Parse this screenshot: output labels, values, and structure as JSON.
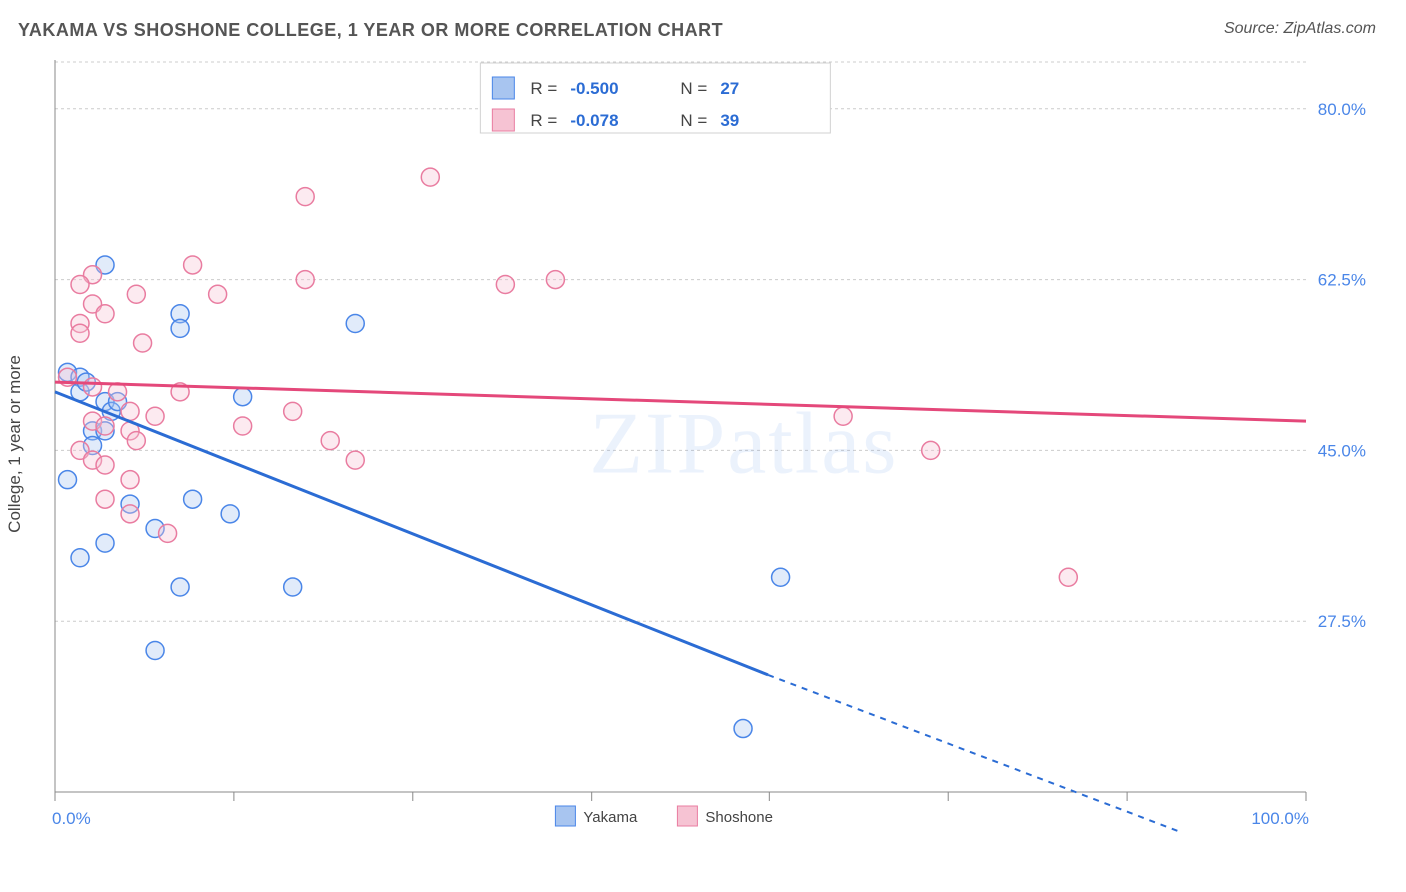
{
  "title": "YAKAMA VS SHOSHONE COLLEGE, 1 YEAR OR MORE CORRELATION CHART",
  "source": "Source: ZipAtlas.com",
  "watermark": "ZIPatlas",
  "chart": {
    "type": "scatter",
    "ylabel": "College, 1 year or more",
    "xlim": [
      0,
      100
    ],
    "ylim": [
      10,
      85
    ],
    "xtick_positions": [
      0,
      14.3,
      28.6,
      42.9,
      57.1,
      71.4,
      85.7,
      100
    ],
    "xtick_labels_shown": {
      "0": "0.0%",
      "100": "100.0%"
    },
    "ytick_positions": [
      27.5,
      45.0,
      62.5,
      80.0
    ],
    "ytick_labels": [
      "27.5%",
      "45.0%",
      "62.5%",
      "80.0%"
    ],
    "grid_color": "#cccccc",
    "background_color": "#ffffff",
    "axis_color": "#888888",
    "marker_radius": 9,
    "series": [
      {
        "name": "Yakama",
        "color_stroke": "#4a86e8",
        "color_fill": "#a8c5f0",
        "R": "-0.500",
        "N": "27",
        "trend": {
          "x1": 0,
          "y1": 51,
          "x2": 57,
          "y2": 22,
          "dash_x2": 100,
          "dash_y2": 1,
          "color": "#2b6cd4"
        },
        "points": [
          [
            4,
            64
          ],
          [
            10,
            59
          ],
          [
            10,
            57.5
          ],
          [
            1,
            53
          ],
          [
            2,
            52.5
          ],
          [
            2,
            51
          ],
          [
            4,
            50
          ],
          [
            4.5,
            49
          ],
          [
            3,
            47
          ],
          [
            4,
            47
          ],
          [
            3,
            45.5
          ],
          [
            15,
            50.5
          ],
          [
            24,
            58
          ],
          [
            1,
            42
          ],
          [
            6,
            39.5
          ],
          [
            11,
            40
          ],
          [
            14,
            38.5
          ],
          [
            8,
            37
          ],
          [
            4,
            35.5
          ],
          [
            2,
            34
          ],
          [
            10,
            31
          ],
          [
            19,
            31
          ],
          [
            8,
            24.5
          ],
          [
            58,
            32
          ],
          [
            55,
            16.5
          ],
          [
            2.5,
            52
          ],
          [
            5,
            50
          ]
        ]
      },
      {
        "name": "Shoshone",
        "color_stroke": "#e97ca0",
        "color_fill": "#f6c3d3",
        "R": "-0.078",
        "N": "39",
        "trend": {
          "x1": 0,
          "y1": 52,
          "x2": 100,
          "y2": 48,
          "color": "#e4487a"
        },
        "points": [
          [
            30,
            73
          ],
          [
            20,
            71
          ],
          [
            11,
            64
          ],
          [
            3,
            63
          ],
          [
            2,
            62
          ],
          [
            6.5,
            61
          ],
          [
            13,
            61
          ],
          [
            20,
            62.5
          ],
          [
            36,
            62
          ],
          [
            40,
            62.5
          ],
          [
            2,
            58
          ],
          [
            2,
            57
          ],
          [
            7,
            56
          ],
          [
            1,
            52.5
          ],
          [
            3,
            51.5
          ],
          [
            5,
            51
          ],
          [
            6,
            49
          ],
          [
            10,
            51
          ],
          [
            3,
            48
          ],
          [
            4,
            47.5
          ],
          [
            6,
            47
          ],
          [
            6.5,
            46
          ],
          [
            8,
            48.5
          ],
          [
            19,
            49
          ],
          [
            15,
            47.5
          ],
          [
            22,
            46
          ],
          [
            24,
            44
          ],
          [
            2,
            45
          ],
          [
            3,
            44
          ],
          [
            4,
            43.5
          ],
          [
            6,
            42
          ],
          [
            4,
            40
          ],
          [
            6,
            38.5
          ],
          [
            9,
            36.5
          ],
          [
            63,
            48.5
          ],
          [
            70,
            45
          ],
          [
            81,
            32
          ],
          [
            3,
            60
          ],
          [
            4,
            59
          ]
        ]
      }
    ],
    "legend_bottom": [
      {
        "label": "Yakama",
        "fill": "#a8c5f0",
        "stroke": "#4a86e8"
      },
      {
        "label": "Shoshone",
        "fill": "#f6c3d3",
        "stroke": "#e97ca0"
      }
    ]
  }
}
